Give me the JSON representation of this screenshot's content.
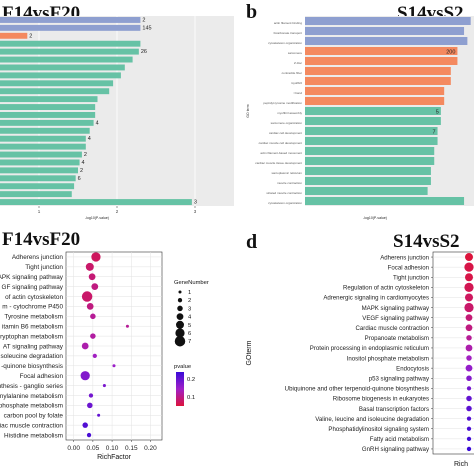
{
  "headers": {
    "top_left_title": "F14vsF20",
    "top_right_letter": "b",
    "top_right_title": "S14vsS2",
    "bottom_left_title": "F14vsF20",
    "bottom_right_letter": "d",
    "bottom_right_title": "S14vsS2"
  },
  "colors": {
    "panel_bg": "#ebebeb",
    "bar_blue": "#8e9fd0",
    "bar_orange": "#f4895f",
    "bar_green": "#66c2a5",
    "dot_high": "#dc143c",
    "dot_low": "#3a0ad8",
    "dot_mid": "#a020c8"
  },
  "chart_data": [
    {
      "id": "a",
      "type": "bar",
      "orientation": "horizontal",
      "title": "F14vsF20",
      "xlabel": "-log10(P-value)",
      "xticks": [
        "1",
        "2",
        "3"
      ],
      "xlim": [
        0.5,
        3.5
      ],
      "series": [
        {
          "values": [
            2.3,
            2.3,
            0.85,
            2.3,
            2.28,
            2.2,
            2.1,
            2.05,
            1.95,
            1.9,
            1.75,
            1.72,
            1.72,
            1.7,
            1.65,
            1.6,
            1.6,
            1.55,
            1.52,
            1.5,
            1.47,
            1.45,
            1.42,
            2.96
          ],
          "labels": [
            "2",
            "145",
            "2",
            "",
            "26",
            "",
            "",
            "",
            "",
            "",
            "",
            "",
            "",
            "4",
            "",
            "4",
            "",
            "2",
            "4",
            "2",
            "6",
            "",
            "",
            "3"
          ],
          "colors": [
            "blue",
            "blue",
            "orange",
            "green",
            "green",
            "green",
            "green",
            "green",
            "green",
            "green",
            "green",
            "green",
            "green",
            "green",
            "green",
            "green",
            "green",
            "green",
            "green",
            "green",
            "green",
            "green",
            "green",
            "green"
          ]
        }
      ]
    },
    {
      "id": "b",
      "type": "bar",
      "orientation": "horizontal",
      "title": "S14vsS2",
      "ylabel": "GO term",
      "xlabel": "-log10(P-value)",
      "categories": [
        "actin filament binding",
        "bicarbonate transport",
        "cytoskeleton organization",
        "sarcomere",
        "Z disc",
        "contractile fiber",
        "myofibril",
        "I band",
        "peptidyl-tyrosine modification",
        "myofibril assembly",
        "sarcomere organization",
        "cardiac cell development",
        "cardiac muscle cell development",
        "actin filament-based movement",
        "cardiac muscle tissue development",
        "sarcoplasmic reticulum",
        "muscle contraction",
        "striated muscle contraction",
        "cytoskeleton organization"
      ],
      "series": [
        {
          "values": [
            3.5,
            3.4,
            3.45,
            3.3,
            3.3,
            3.2,
            3.2,
            3.1,
            3.1,
            3.05,
            3.05,
            3.0,
            3.0,
            2.95,
            2.95,
            2.9,
            2.9,
            2.85,
            3.4
          ],
          "labels": [
            "",
            "",
            "",
            "200",
            "",
            "",
            "",
            "",
            "",
            "5",
            "",
            "7",
            "",
            "",
            "",
            "",
            "",
            "",
            ""
          ],
          "colors": [
            "blue",
            "blue",
            "blue",
            "orange",
            "orange",
            "orange",
            "orange",
            "orange",
            "orange",
            "green",
            "green",
            "green",
            "green",
            "green",
            "green",
            "green",
            "green",
            "green",
            "green"
          ]
        }
      ]
    },
    {
      "id": "c",
      "type": "scatter",
      "title": "F14vsF20",
      "xlabel": "RichFactor",
      "xticks": [
        "0.00",
        "0.05",
        "0.10",
        "0.15",
        "0.20"
      ],
      "xlim": [
        -0.02,
        0.23
      ],
      "categories": [
        "Adherens junction",
        "Tight junction",
        "MAPK signaling pathway",
        "VEGF signaling pathway",
        "Regulation of actin cytoskeleton",
        "Drug metabolism - cytochrome P450",
        "Tyrosine metabolism",
        "Vitamin B6 metabolism",
        "Tryptophan metabolism",
        "JAK-STAT signaling pathway",
        "Isoleucine degradation",
        "Ubiquinone and other terpenoid-quinone biosynthesis",
        "Focal adhesion",
        "Glycosphingolipid biosynthesis - ganglio series",
        "Phenylalanine metabolism",
        "Inositol phosphate metabolism",
        "One carbon pool by folate",
        "Cardiac muscle contraction",
        "Histidine metabolism"
      ],
      "category_labels": [
        "Adherens junction",
        "Tight junction",
        "APK signaling pathway",
        "GF signaling pathway",
        "of actin cytoskeleton",
        "m - cytochrome P450",
        "Tyrosine metabolism",
        "itamin B6 metabolism",
        "ryptophan metabolism",
        "AT signaling pathway",
        "soleucine degradation",
        "-quinone biosynthesis",
        "Focal adhesion",
        "nthesis - ganglio series",
        "nylalanine metabolism",
        "phosphate metabolism",
        "carbon pool by folate",
        "iac muscle contraction",
        "Histidine metabolism"
      ],
      "legend_size_title": "GeneNumber",
      "legend_sizes": [
        1,
        2,
        3,
        4,
        5,
        6,
        7
      ],
      "legend_color_title": "pvalue",
      "legend_color_ticks": [
        "0.2",
        "0.1"
      ],
      "points": [
        {
          "x": 0.058,
          "size": 6,
          "p": 0.05
        },
        {
          "x": 0.042,
          "size": 5,
          "p": 0.06
        },
        {
          "x": 0.048,
          "size": 4,
          "p": 0.07
        },
        {
          "x": 0.055,
          "size": 4,
          "p": 0.08
        },
        {
          "x": 0.035,
          "size": 7,
          "p": 0.06
        },
        {
          "x": 0.043,
          "size": 4,
          "p": 0.08
        },
        {
          "x": 0.05,
          "size": 3,
          "p": 0.1
        },
        {
          "x": 0.14,
          "size": 1,
          "p": 0.1
        },
        {
          "x": 0.05,
          "size": 3,
          "p": 0.11
        },
        {
          "x": 0.03,
          "size": 4,
          "p": 0.12
        },
        {
          "x": 0.055,
          "size": 2,
          "p": 0.14
        },
        {
          "x": 0.105,
          "size": 1,
          "p": 0.15
        },
        {
          "x": 0.03,
          "size": 6,
          "p": 0.18
        },
        {
          "x": 0.08,
          "size": 1,
          "p": 0.19
        },
        {
          "x": 0.045,
          "size": 2,
          "p": 0.2
        },
        {
          "x": 0.042,
          "size": 3,
          "p": 0.21
        },
        {
          "x": 0.065,
          "size": 1,
          "p": 0.22
        },
        {
          "x": 0.03,
          "size": 3,
          "p": 0.24
        },
        {
          "x": 0.04,
          "size": 2,
          "p": 0.25
        }
      ]
    },
    {
      "id": "d",
      "type": "scatter",
      "title": "S14vsS2",
      "ylabel": "GOterm",
      "xlabel": "Rich",
      "categories": [
        "Adherens junction",
        "Focal adhesion",
        "Tight junction",
        "Regulation of actin cytoskeleton",
        "Adrenergic signaling in cardiomyocytes",
        "MAPK signaling pathway",
        "VEGF signaling pathway",
        "Cardiac muscle contraction",
        "Propanoate metabolism",
        "Protein processing in endoplasmic reticulum",
        "Inositol phosphate metabolism",
        "Endocytosis",
        "p53 signaling pathway",
        "Ubiquinone and other terpenoid-quinone biosynthesis",
        "Ribosome biogenesis in eukaryotes",
        "Basal transcription factors",
        "Valine, leucine and isoleucine degradation",
        "Phosphatidylinositol signaling system",
        "Fatty acid metabolism",
        "GnRH signaling pathway"
      ],
      "points": [
        {
          "size": 5,
          "p": 0.02
        },
        {
          "size": 6,
          "p": 0.03
        },
        {
          "size": 5,
          "p": 0.03
        },
        {
          "size": 6,
          "p": 0.04
        },
        {
          "size": 5,
          "p": 0.05
        },
        {
          "size": 6,
          "p": 0.06
        },
        {
          "size": 4,
          "p": 0.07
        },
        {
          "size": 4,
          "p": 0.08
        },
        {
          "size": 3,
          "p": 0.1
        },
        {
          "size": 4,
          "p": 0.12
        },
        {
          "size": 3,
          "p": 0.14
        },
        {
          "size": 4,
          "p": 0.16
        },
        {
          "size": 3,
          "p": 0.18
        },
        {
          "size": 2,
          "p": 0.2
        },
        {
          "size": 3,
          "p": 0.22
        },
        {
          "size": 3,
          "p": 0.23
        },
        {
          "size": 2,
          "p": 0.24
        },
        {
          "size": 2,
          "p": 0.25
        },
        {
          "size": 2,
          "p": 0.26
        },
        {
          "size": 2,
          "p": 0.27
        }
      ]
    }
  ]
}
